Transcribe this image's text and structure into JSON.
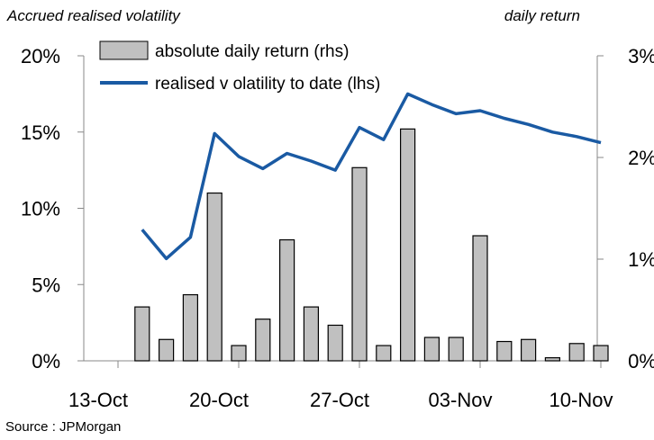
{
  "header": {
    "left_caption": "Accrued realised volatility",
    "right_caption": "daily return"
  },
  "footer": {
    "source": "Source : JPMorgan"
  },
  "chart_data": {
    "type": "bar+line",
    "xlabel": "",
    "x_tick_labels": [
      "13-Oct",
      "20-Oct",
      "27-Oct",
      "03-Nov",
      "10-Nov"
    ],
    "y_left": {
      "ticks": [
        "0%",
        "5%",
        "10%",
        "15%",
        "20%"
      ],
      "ylim": [
        0,
        20
      ]
    },
    "y_right": {
      "ticks": [
        "0%",
        "1%",
        "2%",
        "3%"
      ],
      "ylim": [
        0,
        3
      ]
    },
    "legend": {
      "placement": "top-left",
      "bar_label": "absolute daily return (rhs)",
      "line_label": "realised v olatility  to date (lhs)"
    },
    "bars": {
      "name": "absolute daily return (rhs)",
      "axis": "right",
      "color": "#c0c0c0",
      "values": [
        0.53,
        0.21,
        0.65,
        1.65,
        0.15,
        0.41,
        1.19,
        0.53,
        0.35,
        1.9,
        0.15,
        2.28,
        0.23,
        0.23,
        1.23,
        0.19,
        0.21,
        0.03,
        0.17,
        0.15
      ]
    },
    "line": {
      "name": "realised v olatility  to date (lhs)",
      "axis": "left",
      "color": "#1a5aa3",
      "values": [
        null,
        8.6,
        6.7,
        8.1,
        14.9,
        13.4,
        12.6,
        13.6,
        13.1,
        12.5,
        15.3,
        14.5,
        17.5,
        16.8,
        16.2,
        16.4,
        15.9,
        15.5,
        15.0,
        14.7,
        14.3
      ]
    }
  }
}
